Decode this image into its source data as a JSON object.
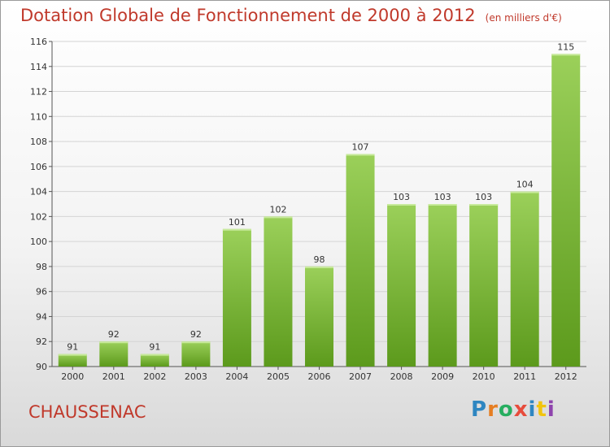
{
  "title": "Dotation Globale de Fonctionnement de 2000 à 2012",
  "unit_note": "(en milliers d'€)",
  "commune": "CHAUSSENAC",
  "logo": {
    "text": "Proxiti",
    "letter_colors": [
      "#2e86c1",
      "#e67e22",
      "#27ae60",
      "#e74c3c",
      "#2e86c1",
      "#f1c40f",
      "#8e44ad"
    ]
  },
  "colors": {
    "title": "#c0392b",
    "bar_top": "#9bd05a",
    "bar_bottom": "#5c9a1c",
    "grid": "#d4d4d4"
  },
  "chart_data": {
    "type": "bar",
    "title": "Dotation Globale de Fonctionnement de 2000 à 2012",
    "subtitle": "(en milliers d'€)",
    "categories": [
      "2000",
      "2001",
      "2002",
      "2003",
      "2004",
      "2005",
      "2006",
      "2007",
      "2008",
      "2009",
      "2010",
      "2011",
      "2012"
    ],
    "values": [
      91,
      92,
      91,
      92,
      101,
      102,
      98,
      107,
      103,
      103,
      103,
      104,
      115
    ],
    "ylim": [
      90,
      116
    ],
    "yticks": [
      90,
      92,
      94,
      96,
      98,
      100,
      102,
      104,
      106,
      108,
      110,
      112,
      114,
      116
    ],
    "grid": true,
    "data_labels": true
  }
}
